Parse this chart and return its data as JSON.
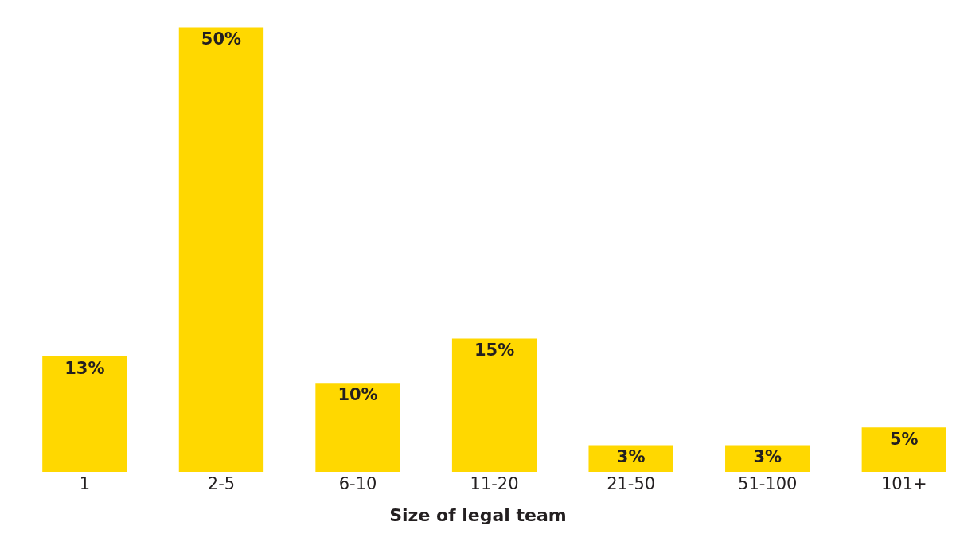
{
  "chart_data": {
    "type": "bar",
    "xlabel": "Size of legal team",
    "categories": [
      "1",
      "2-5",
      "6-10",
      "11-20",
      "21-50",
      "51-100",
      "101+"
    ],
    "values": [
      13,
      50,
      10,
      15,
      3,
      3,
      5
    ],
    "value_labels": [
      "13%",
      "50%",
      "10%",
      "15%",
      "3%",
      "3%",
      "5%"
    ],
    "color": "#ffd800"
  }
}
